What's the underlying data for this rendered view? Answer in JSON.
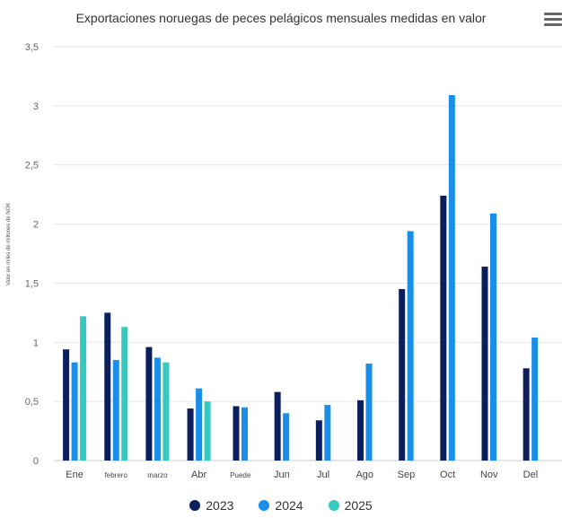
{
  "chart_data": {
    "type": "bar",
    "title": "Exportaciones noruegas de peces pelágicos mensuales medidas en valor",
    "ylabel": "Valor en miles de millones de NOK",
    "xlabel": "",
    "ylim": [
      0,
      3.5
    ],
    "yticks": [
      "0",
      "0,5",
      "1",
      "1,5",
      "2",
      "2,5",
      "3",
      "3,5"
    ],
    "categories": [
      "Ene",
      "febrero",
      "marzo",
      "Abr",
      "Puede",
      "Jun",
      "Jul",
      "Ago",
      "Sep",
      "Oct",
      "Nov",
      "Del"
    ],
    "series": [
      {
        "name": "2023",
        "color": "#0b1f5c",
        "values": [
          0.94,
          1.25,
          0.96,
          0.44,
          0.46,
          0.58,
          0.34,
          0.51,
          1.45,
          2.24,
          1.64,
          0.78
        ]
      },
      {
        "name": "2024",
        "color": "#1a8fea",
        "values": [
          0.83,
          0.85,
          0.87,
          0.61,
          0.45,
          0.4,
          0.47,
          0.82,
          1.94,
          3.09,
          2.09,
          1.04
        ]
      },
      {
        "name": "2025",
        "color": "#35c9c0",
        "values": [
          1.22,
          1.13,
          0.83,
          0.5,
          null,
          null,
          null,
          null,
          null,
          null,
          null,
          null
        ]
      }
    ],
    "grid": true,
    "legend": "bottom"
  }
}
